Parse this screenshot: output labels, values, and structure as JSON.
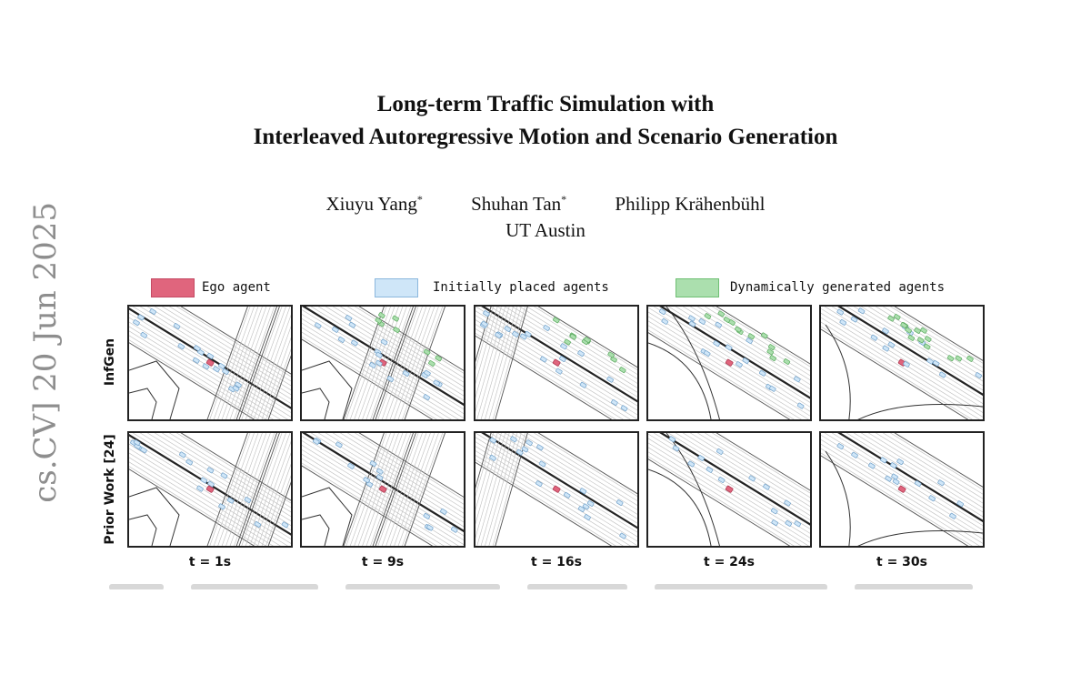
{
  "paper": {
    "title_line1": "Long-term Traffic Simulation with",
    "title_line2": "Interleaved Autoregressive Motion and Scenario Generation",
    "authors": [
      {
        "name": "Xiuyu Yang",
        "mark": "*"
      },
      {
        "name": "Shuhan Tan",
        "mark": "*"
      },
      {
        "name": "Philipp Krähenbühl",
        "mark": ""
      }
    ],
    "affiliation": "UT Austin",
    "arxiv_stamp": "cs.CV]  20 Jun 2025"
  },
  "figure": {
    "legend": [
      {
        "label": "Ego agent",
        "fill": "#e0657d",
        "stroke": "#c44a63"
      },
      {
        "label": "Initially placed agents",
        "fill": "#cfe6f8",
        "stroke": "#8bb7dd"
      },
      {
        "label": "Dynamically generated agents",
        "fill": "#abdfae",
        "stroke": "#6fbf73"
      }
    ],
    "rows": [
      "InfGen",
      "Prior Work [24]"
    ],
    "times": [
      "t = 1s",
      "t = 9s",
      "t = 16s",
      "t = 24s",
      "t = 30s"
    ],
    "colors": {
      "ego": "#e0657d",
      "initial": "#cfe6f8",
      "generated": "#abdfae",
      "road": "#333333"
    }
  }
}
